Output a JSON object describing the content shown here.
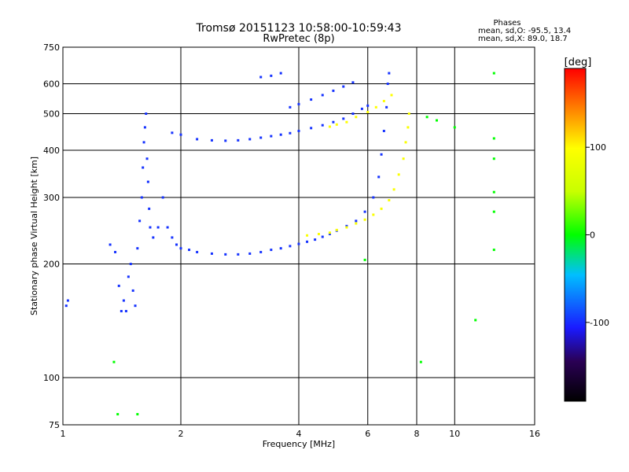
{
  "chart_data": {
    "type": "scatter",
    "title": "Tromsø 20151123 10:58:00-10:59:43",
    "subtitle": "RwPretec (8p)",
    "xlabel": "Frequency [MHz]",
    "ylabel": "Stationary phase Virtual Height [km]",
    "x_scale": "log",
    "y_scale": "log",
    "xlim": [
      1,
      16
    ],
    "ylim": [
      75,
      750
    ],
    "x_ticks": [
      "1",
      "2",
      "4",
      "6",
      "8",
      "10",
      "16"
    ],
    "x_tick_values": [
      1,
      2,
      4,
      6,
      8,
      10,
      16
    ],
    "y_ticks": [
      "75",
      "100",
      "200",
      "300",
      "400",
      "500",
      "600",
      "750"
    ],
    "y_tick_values": [
      75,
      100,
      200,
      300,
      400,
      500,
      600,
      750
    ],
    "grid": true,
    "phase_stats": {
      "heading": "Phases",
      "line_o": "mean, sd,O:  -95.5, 13.4",
      "line_x": "mean, sd,X:   89.0, 18.7"
    },
    "colorbar": {
      "label": "[deg]",
      "ticks": [
        "100",
        "0",
        "-100"
      ],
      "tick_values": [
        100,
        0,
        -100
      ],
      "range": [
        -190,
        190
      ]
    },
    "series": [
      {
        "trace": "lower-o-trace",
        "phase": -100,
        "points": [
          [
            1.02,
            155
          ],
          [
            1.03,
            160
          ],
          [
            1.32,
            225
          ],
          [
            1.36,
            215
          ],
          [
            1.39,
            175
          ],
          [
            1.41,
            150
          ],
          [
            1.43,
            160
          ],
          [
            1.45,
            150
          ],
          [
            1.47,
            185
          ],
          [
            1.49,
            200
          ],
          [
            1.51,
            170
          ],
          [
            1.53,
            155
          ],
          [
            1.55,
            220
          ],
          [
            1.57,
            260
          ],
          [
            1.59,
            300
          ],
          [
            1.6,
            360
          ],
          [
            1.61,
            420
          ],
          [
            1.62,
            460
          ],
          [
            1.63,
            500
          ],
          [
            1.64,
            380
          ],
          [
            1.65,
            330
          ],
          [
            1.66,
            280
          ],
          [
            1.67,
            250
          ],
          [
            1.7,
            235
          ],
          [
            1.75,
            250
          ],
          [
            1.8,
            300
          ],
          [
            1.85,
            250
          ],
          [
            1.9,
            235
          ],
          [
            1.95,
            225
          ],
          [
            2.0,
            220
          ],
          [
            2.1,
            218
          ],
          [
            2.2,
            215
          ],
          [
            2.4,
            213
          ],
          [
            2.6,
            212
          ],
          [
            2.8,
            212
          ],
          [
            3.0,
            213
          ],
          [
            3.2,
            215
          ],
          [
            3.4,
            218
          ],
          [
            3.6,
            220
          ],
          [
            3.8,
            223
          ],
          [
            4.0,
            226
          ],
          [
            4.2,
            229
          ],
          [
            4.4,
            232
          ],
          [
            4.6,
            236
          ],
          [
            4.8,
            240
          ],
          [
            5.0,
            245
          ],
          [
            5.3,
            252
          ],
          [
            5.6,
            260
          ],
          [
            5.9,
            275
          ],
          [
            6.2,
            300
          ],
          [
            6.4,
            340
          ],
          [
            6.5,
            390
          ],
          [
            6.6,
            450
          ],
          [
            6.7,
            520
          ],
          [
            6.75,
            600
          ],
          [
            6.8,
            640
          ]
        ]
      },
      {
        "trace": "lower-x-trace",
        "phase": 95,
        "points": [
          [
            4.2,
            238
          ],
          [
            4.5,
            240
          ],
          [
            4.8,
            242
          ],
          [
            5.0,
            246
          ],
          [
            5.3,
            250
          ],
          [
            5.6,
            256
          ],
          [
            5.9,
            262
          ],
          [
            6.2,
            270
          ],
          [
            6.5,
            280
          ],
          [
            6.8,
            295
          ],
          [
            7.0,
            315
          ],
          [
            7.2,
            345
          ],
          [
            7.4,
            380
          ],
          [
            7.5,
            420
          ],
          [
            7.6,
            460
          ],
          [
            7.65,
            500
          ]
        ]
      },
      {
        "trace": "upper-o-trace",
        "phase": -100,
        "points": [
          [
            1.9,
            445
          ],
          [
            2.0,
            440
          ],
          [
            2.2,
            428
          ],
          [
            2.4,
            425
          ],
          [
            2.6,
            424
          ],
          [
            2.8,
            425
          ],
          [
            3.0,
            428
          ],
          [
            3.2,
            432
          ],
          [
            3.4,
            436
          ],
          [
            3.6,
            440
          ],
          [
            3.8,
            444
          ],
          [
            4.0,
            450
          ],
          [
            4.3,
            458
          ],
          [
            4.6,
            466
          ],
          [
            4.9,
            475
          ],
          [
            5.2,
            485
          ],
          [
            5.5,
            500
          ],
          [
            5.8,
            515
          ],
          [
            6.0,
            525
          ],
          [
            3.2,
            625
          ],
          [
            3.4,
            630
          ],
          [
            3.6,
            640
          ],
          [
            3.8,
            520
          ],
          [
            4.0,
            530
          ],
          [
            4.3,
            545
          ],
          [
            4.6,
            560
          ],
          [
            4.9,
            575
          ],
          [
            5.2,
            590
          ],
          [
            5.5,
            605
          ]
        ]
      },
      {
        "trace": "upper-x-trace",
        "phase": 100,
        "points": [
          [
            4.8,
            462
          ],
          [
            5.0,
            468
          ],
          [
            5.3,
            475
          ],
          [
            5.6,
            490
          ],
          [
            6.0,
            505
          ],
          [
            6.3,
            520
          ],
          [
            6.6,
            540
          ],
          [
            6.9,
            560
          ]
        ]
      },
      {
        "trace": "sparse-echoes",
        "phase": 0,
        "points": [
          [
            1.35,
            110
          ],
          [
            1.38,
            80
          ],
          [
            1.55,
            80
          ],
          [
            5.9,
            205
          ],
          [
            8.2,
            110
          ],
          [
            8.5,
            490
          ],
          [
            9.0,
            480
          ],
          [
            10.0,
            460
          ],
          [
            11.3,
            142
          ],
          [
            12.6,
            640
          ],
          [
            12.6,
            430
          ],
          [
            12.6,
            380
          ],
          [
            12.6,
            310
          ],
          [
            12.6,
            275
          ],
          [
            12.6,
            218
          ]
        ]
      }
    ]
  }
}
